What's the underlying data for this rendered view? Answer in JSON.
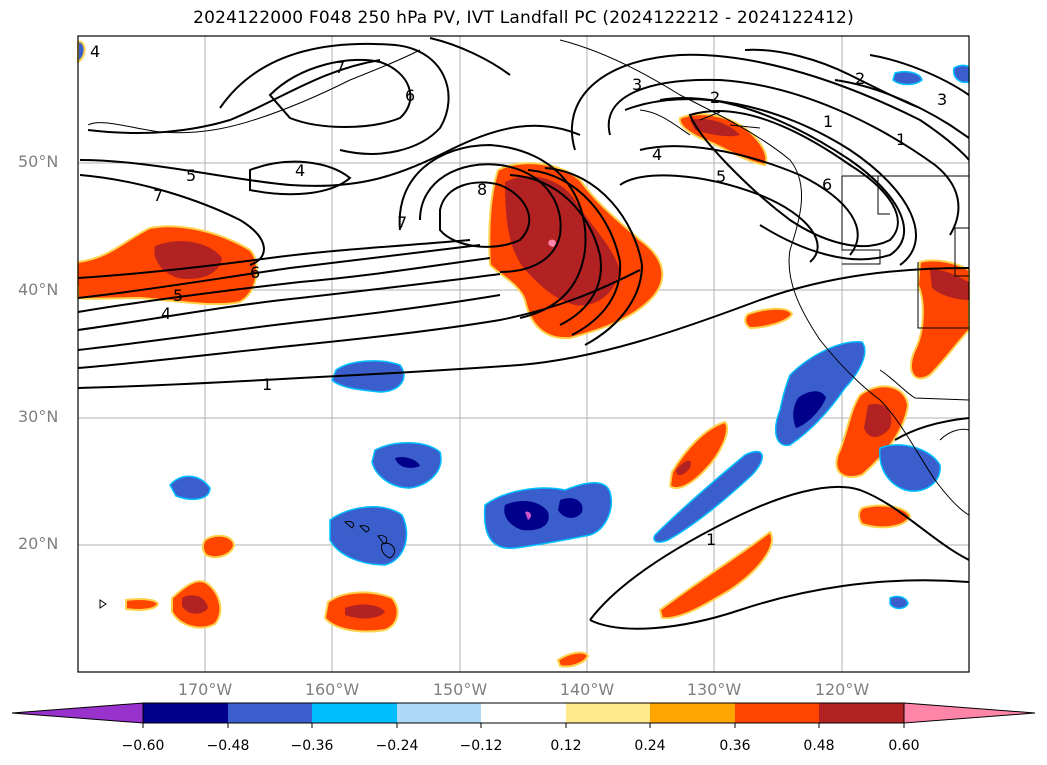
{
  "title": "2024122000 F048 250 hPa PV, IVT Landfall PC (2024122212 - 2024122412)",
  "lat_labels": [
    "50°N",
    "40°N",
    "30°N",
    "20°N"
  ],
  "lon_labels": [
    "170°W",
    "160°W",
    "150°W",
    "140°W",
    "130°W",
    "120°W"
  ],
  "contour_labels": [
    "4",
    "7",
    "6",
    "3",
    "2",
    "1",
    "1",
    "2",
    "3",
    "5",
    "4",
    "7",
    "8",
    "7",
    "4",
    "5",
    "6",
    "6",
    "5",
    "4",
    "1",
    "1"
  ],
  "colorbar": {
    "ticks": [
      "−0.60",
      "−0.48",
      "−0.36",
      "−0.24",
      "−0.12",
      "0.12",
      "0.24",
      "0.36",
      "0.48",
      "0.60"
    ],
    "colors": [
      "#9932cc",
      "#00008b",
      "#3a5fcd",
      "#00bfff",
      "#add8f6",
      "#ffffff",
      "#ffe98c",
      "#ffa500",
      "#ff4500",
      "#b22222",
      "#ff85a8"
    ],
    "extend": "both"
  }
}
